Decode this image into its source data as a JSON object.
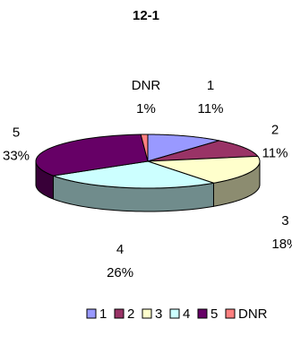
{
  "chart_data": {
    "type": "pie",
    "title": "12-1",
    "categories": [
      "1",
      "2",
      "3",
      "4",
      "5",
      "DNR"
    ],
    "values": [
      11,
      11,
      18,
      26,
      33,
      1
    ],
    "value_labels": [
      "11%",
      "11%",
      "18%",
      "26%",
      "33%",
      "1%"
    ],
    "colors": [
      "#9999ff",
      "#993366",
      "#ffffcc",
      "#ccffff",
      "#660066",
      "#ff8080"
    ],
    "three_d": true,
    "legend_position": "bottom"
  }
}
